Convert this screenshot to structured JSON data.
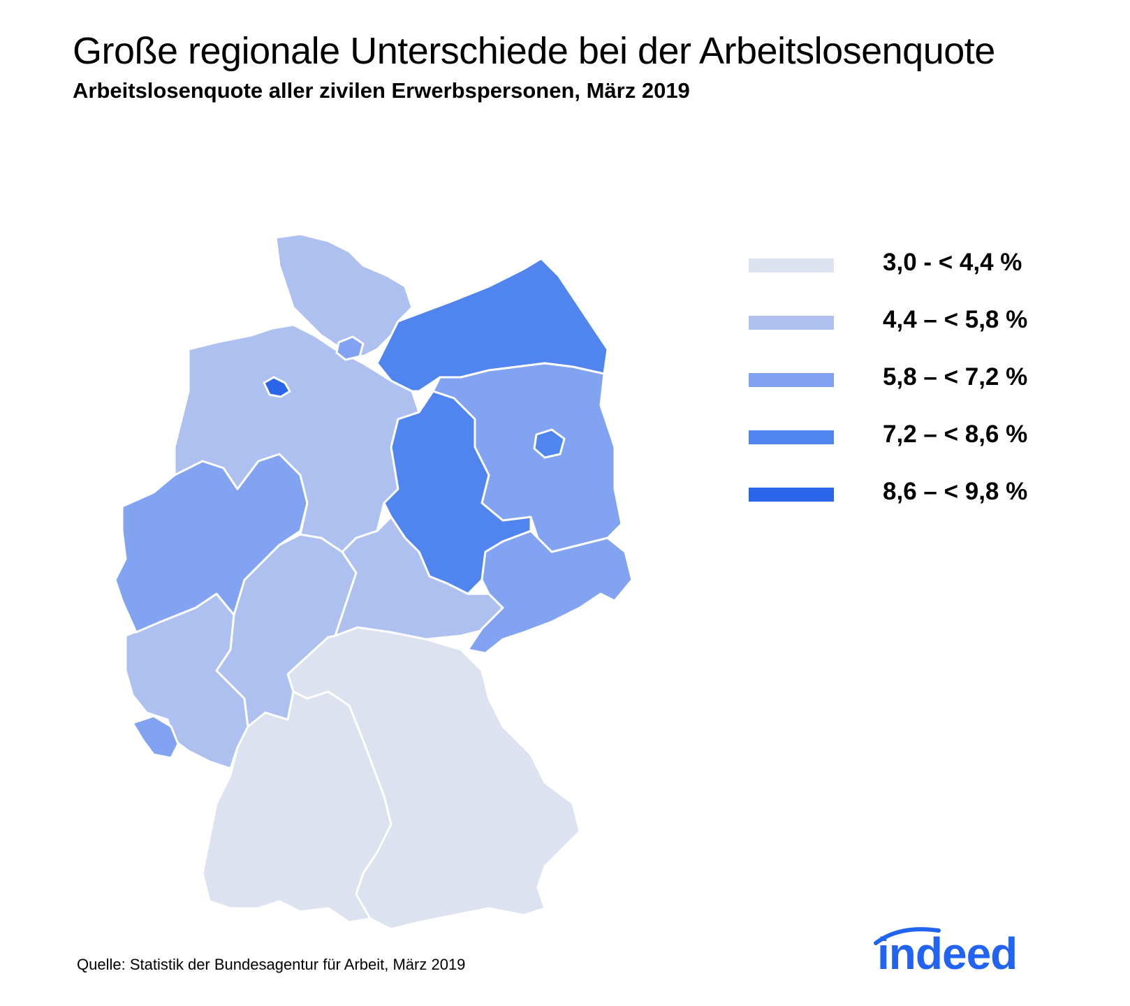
{
  "title": "Große regionale Unterschiede bei der Arbeitslosenquote",
  "subtitle": "Arbeitslosenquote aller zivilen Erwerbspersonen, März 2019",
  "legend": [
    {
      "label": "3,0 - < 4,4 %",
      "color": "#dde2f0"
    },
    {
      "label": "4,4 – < 5,8 %",
      "color": "#adc0f0"
    },
    {
      "label": "5,8 – < 7,2 %",
      "color": "#82a3f1"
    },
    {
      "label": "7,2 – < 8,6 %",
      "color": "#5085f0"
    },
    {
      "label": "8,6 – < 9,8 %",
      "color": "#2a66ea"
    }
  ],
  "source": "Quelle: Statistik der Bundesagentur für Arbeit, März 2019",
  "logo": "indeed",
  "regions": [
    {
      "id": "schleswig-holstein",
      "class": 1
    },
    {
      "id": "hamburg",
      "class": 2
    },
    {
      "id": "mecklenburg-vorpommern",
      "class": 3
    },
    {
      "id": "niedersachsen",
      "class": 1
    },
    {
      "id": "bremen",
      "class": 4
    },
    {
      "id": "sachsen-anhalt",
      "class": 3
    },
    {
      "id": "brandenburg",
      "class": 2
    },
    {
      "id": "berlin",
      "class": 3
    },
    {
      "id": "nordrhein-westfalen",
      "class": 2
    },
    {
      "id": "hessen",
      "class": 1
    },
    {
      "id": "thueringen",
      "class": 1
    },
    {
      "id": "sachsen",
      "class": 2
    },
    {
      "id": "rheinland-pfalz",
      "class": 1
    },
    {
      "id": "saarland",
      "class": 2
    },
    {
      "id": "baden-wuerttemberg",
      "class": 0
    },
    {
      "id": "bayern",
      "class": 0
    }
  ]
}
